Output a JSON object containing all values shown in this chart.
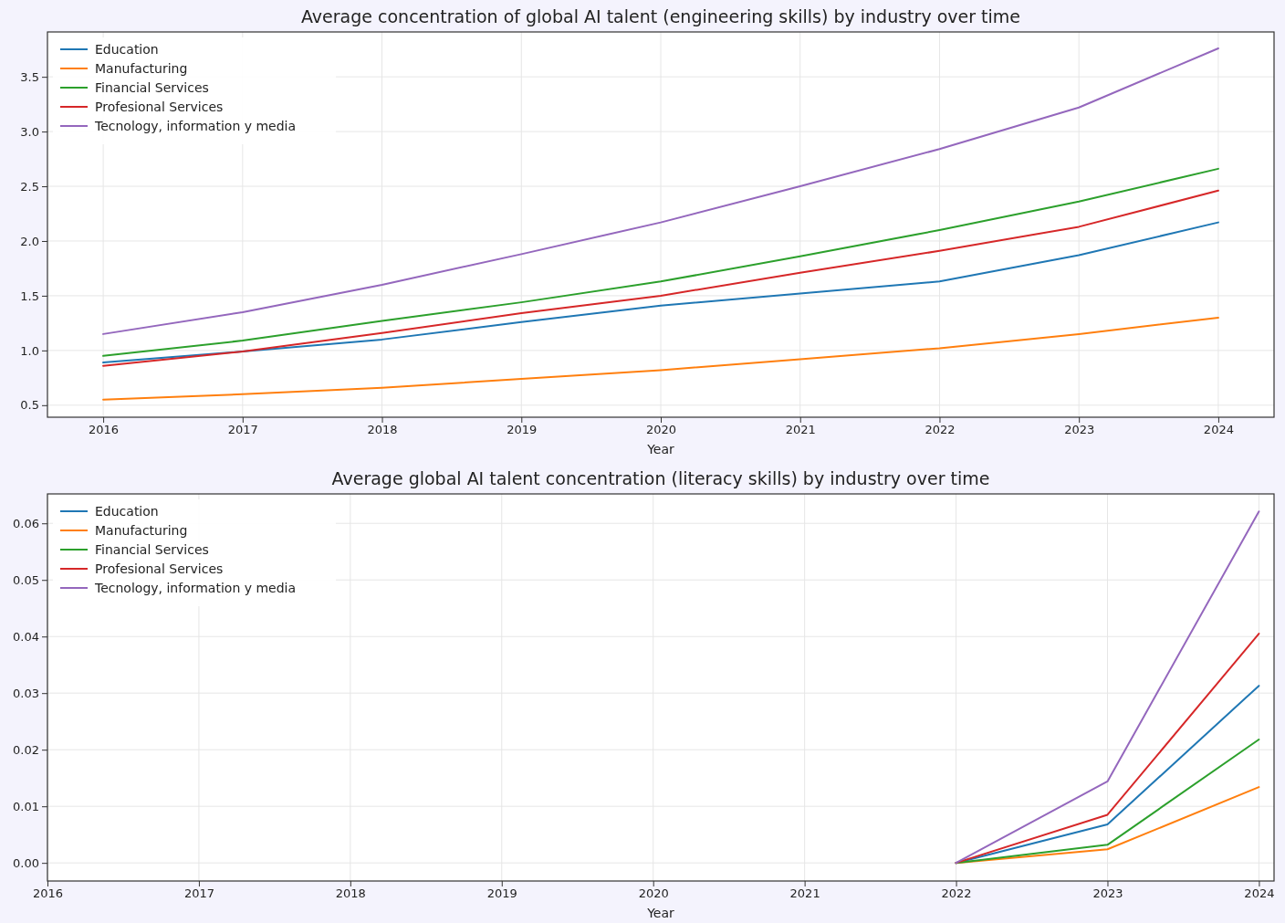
{
  "chart_data": [
    {
      "type": "line",
      "title": "Average concentration of global AI talent (engineering skills) by industry over time",
      "xlabel": "Year",
      "x": [
        2016,
        2017,
        2018,
        2019,
        2020,
        2021,
        2022,
        2023,
        2024
      ],
      "xlim": [
        2015.6,
        2024.4
      ],
      "xticks": [
        2016,
        2017,
        2018,
        2019,
        2020,
        2021,
        2022,
        2023,
        2024
      ],
      "ylim": [
        0.39,
        3.91
      ],
      "yticks": [
        {
          "value": 0.5,
          "label": "0.5"
        },
        {
          "value": 1,
          "label": "1.0"
        },
        {
          "value": 1.5,
          "label": "1.5"
        },
        {
          "value": 2,
          "label": "2.0"
        },
        {
          "value": 2.5,
          "label": "2.5"
        },
        {
          "value": 3,
          "label": "3.0"
        },
        {
          "value": 3.5,
          "label": "3.5"
        }
      ],
      "grid": true,
      "legend": "top left",
      "series": [
        {
          "name": "Education",
          "color": "#1f77b4",
          "values": [
            0.89,
            0.99,
            1.1,
            1.26,
            1.41,
            1.52,
            1.63,
            1.87,
            2.17
          ]
        },
        {
          "name": "Manufacturing",
          "color": "#ff7f0e",
          "values": [
            0.55,
            0.6,
            0.66,
            0.74,
            0.82,
            0.92,
            1.02,
            1.15,
            1.3
          ]
        },
        {
          "name": "Financial Services",
          "color": "#2ca02c",
          "values": [
            0.95,
            1.09,
            1.27,
            1.44,
            1.63,
            1.86,
            2.1,
            2.36,
            2.66
          ]
        },
        {
          "name": "Profesional Services",
          "color": "#d62728",
          "values": [
            0.86,
            0.99,
            1.16,
            1.34,
            1.5,
            1.71,
            1.91,
            2.13,
            2.46
          ]
        },
        {
          "name": "Tecnology, information y media",
          "color": "#9467bd",
          "values": [
            1.15,
            1.35,
            1.6,
            1.88,
            2.17,
            2.5,
            2.84,
            3.22,
            3.76
          ]
        }
      ]
    },
    {
      "type": "line",
      "title": "Average global AI talent concentration (literacy skills) by industry over time",
      "xlabel": "Year",
      "x": [
        2022,
        2023,
        2024
      ],
      "xlim": [
        2016,
        2024.1
      ],
      "xticks": [
        2016,
        2017,
        2018,
        2019,
        2020,
        2021,
        2022,
        2023,
        2024
      ],
      "ylim": [
        -0.0032,
        0.0652
      ],
      "yticks": [
        {
          "value": 0,
          "label": "0.00"
        },
        {
          "value": 0.01,
          "label": "0.01"
        },
        {
          "value": 0.02,
          "label": "0.02"
        },
        {
          "value": 0.03,
          "label": "0.03"
        },
        {
          "value": 0.04,
          "label": "0.04"
        },
        {
          "value": 0.05,
          "label": "0.05"
        },
        {
          "value": 0.06,
          "label": "0.06"
        }
      ],
      "grid": true,
      "legend": "top left",
      "series": [
        {
          "name": "Education",
          "color": "#1f77b4",
          "values": [
            0,
            0.0068,
            0.0313
          ]
        },
        {
          "name": "Manufacturing",
          "color": "#ff7f0e",
          "values": [
            0,
            0.0024,
            0.0134
          ]
        },
        {
          "name": "Financial Services",
          "color": "#2ca02c",
          "values": [
            0,
            0.0032,
            0.0218
          ]
        },
        {
          "name": "Profesional Services",
          "color": "#d62728",
          "values": [
            0,
            0.0085,
            0.0405
          ]
        },
        {
          "name": "Tecnology, information y media",
          "color": "#9467bd",
          "values": [
            0,
            0.0144,
            0.0621
          ]
        }
      ]
    }
  ]
}
